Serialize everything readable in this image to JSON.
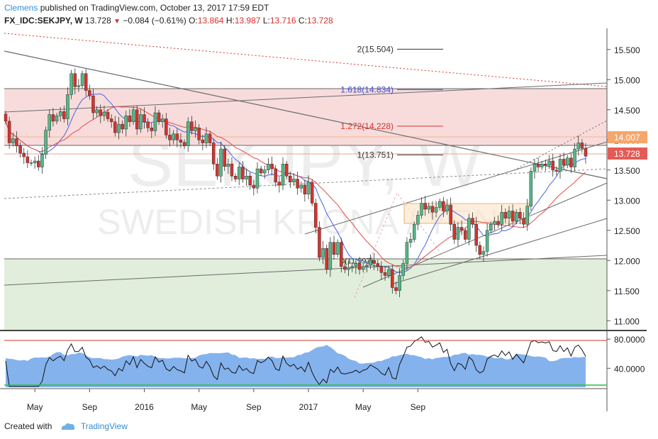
{
  "header": {
    "author": "Clemens",
    "published": "published on TradingView.com, October 13, 2017 17:59 EDT",
    "symbol": "FX_IDC:SEKJPY, W",
    "last": "13.728",
    "change": "−0.084 (−0.61%)",
    "o_label": "O:",
    "o_value": "13.864",
    "h_label": "H:",
    "h_value": "13.987",
    "l_label": "L:",
    "l_value": "13.716",
    "c_label": "C:",
    "c_value": "13.728"
  },
  "watermark": {
    "ticker": "SEKJPY, W",
    "name": "SWEDISH KRONA / YEN"
  },
  "price_badges": {
    "upper": "14.007",
    "lower": "13.728"
  },
  "fibonacci": [
    {
      "label": "2(15.504)",
      "value": 15.504,
      "color": "#333333"
    },
    {
      "label": "1.618(14.834)",
      "value": 14.834,
      "color": "#3a4fd8"
    },
    {
      "label": "1.272(14.228)",
      "value": 14.228,
      "color": "#d6322c"
    },
    {
      "label": "1(13.751)",
      "value": 13.751,
      "color": "#333333"
    },
    {
      "label": "0(11.997)",
      "value": 11.997,
      "color": "#333333"
    }
  ],
  "colors": {
    "up_candle": "#53b987",
    "down_candle": "#d6322c",
    "resistance_zone": "#f8dcdc",
    "support_zone": "#e1eedb",
    "rsi_fill": "#6fa4ea",
    "rsi_overbought": "#d6322c",
    "rsi_oversold": "#27c23b",
    "sma_blue": "#4a63e8",
    "sma_red": "#e44c4c",
    "brand": "#2f8fd8"
  },
  "footer": {
    "created": "Created with",
    "brand": "TradingView"
  },
  "chart_data": [
    {
      "type": "candlestick",
      "title": "FX_IDC:SEKJPY, W",
      "x_ticks": [
        "May",
        "Sep",
        "2016",
        "May",
        "Sep",
        "2017",
        "May",
        "Sep"
      ],
      "y_ticks": [
        "15.500",
        "15.000",
        "14.500",
        "14.000",
        "13.500",
        "13.000",
        "12.500",
        "12.000",
        "11.500",
        "11.000"
      ],
      "ylim": [
        10.85,
        15.85
      ],
      "grid": false,
      "overlays": [
        "SMA blue",
        "SMA red",
        "trend channel",
        "Fibonacci extension"
      ],
      "series": [
        {
          "name": "SEKJPY",
          "close": [
            14.31,
            13.95,
            14.02,
            13.9,
            13.78,
            13.72,
            13.62,
            13.62,
            13.65,
            13.55,
            13.76,
            14.16,
            14.42,
            14.31,
            14.4,
            14.47,
            14.35,
            14.75,
            15.1,
            14.88,
            14.9,
            15.1,
            14.82,
            14.73,
            14.45,
            14.5,
            14.4,
            14.46,
            14.35,
            14.3,
            14.12,
            14.26,
            14.18,
            14.4,
            14.3,
            14.5,
            14.18,
            14.42,
            14.3,
            14.2,
            14.15,
            14.45,
            14.3,
            14.35,
            14.08,
            14.0,
            14.1,
            14.0,
            13.96,
            13.9,
            14.3,
            14.15,
            14.2,
            14.0,
            13.95,
            14.1,
            13.95,
            13.6,
            13.4,
            13.85,
            13.56,
            13.6,
            13.4,
            13.35,
            13.55,
            13.35,
            13.4,
            13.25,
            13.2,
            13.52,
            13.45,
            13.5,
            13.6,
            13.52,
            13.3,
            13.25,
            13.6,
            13.4,
            13.3,
            13.35,
            13.2,
            13.25,
            13.1,
            13.3,
            12.95,
            12.55,
            12.05,
            12.2,
            11.85,
            12.3,
            12.1,
            12.3,
            11.9,
            11.85,
            11.88,
            11.9,
            11.95,
            11.85,
            11.9,
            11.92,
            12.0,
            11.95,
            11.9,
            11.8,
            11.75,
            11.85,
            11.55,
            11.5,
            11.75,
            11.95,
            12.3,
            12.35,
            12.6,
            12.75,
            12.95,
            12.85,
            12.9,
            12.8,
            12.88,
            12.98,
            12.82,
            12.92,
            12.6,
            12.35,
            12.55,
            12.5,
            12.35,
            12.7,
            12.6,
            12.25,
            12.1,
            12.15,
            12.5,
            12.6,
            12.65,
            12.6,
            12.8,
            12.7,
            12.82,
            12.65,
            12.8,
            12.7,
            12.6,
            12.9,
            13.48,
            13.6,
            13.55,
            13.6,
            13.58,
            13.65,
            13.5,
            13.48,
            13.68,
            13.58,
            13.7,
            13.55,
            13.85,
            13.95,
            13.86,
            13.73
          ]
        },
        {
          "name": "RSI",
          "ylim": [
            14,
            88
          ],
          "overbought": 80,
          "oversold": 20,
          "y_ticks": [
            "80.0000",
            "40.0000"
          ]
        }
      ]
    }
  ]
}
